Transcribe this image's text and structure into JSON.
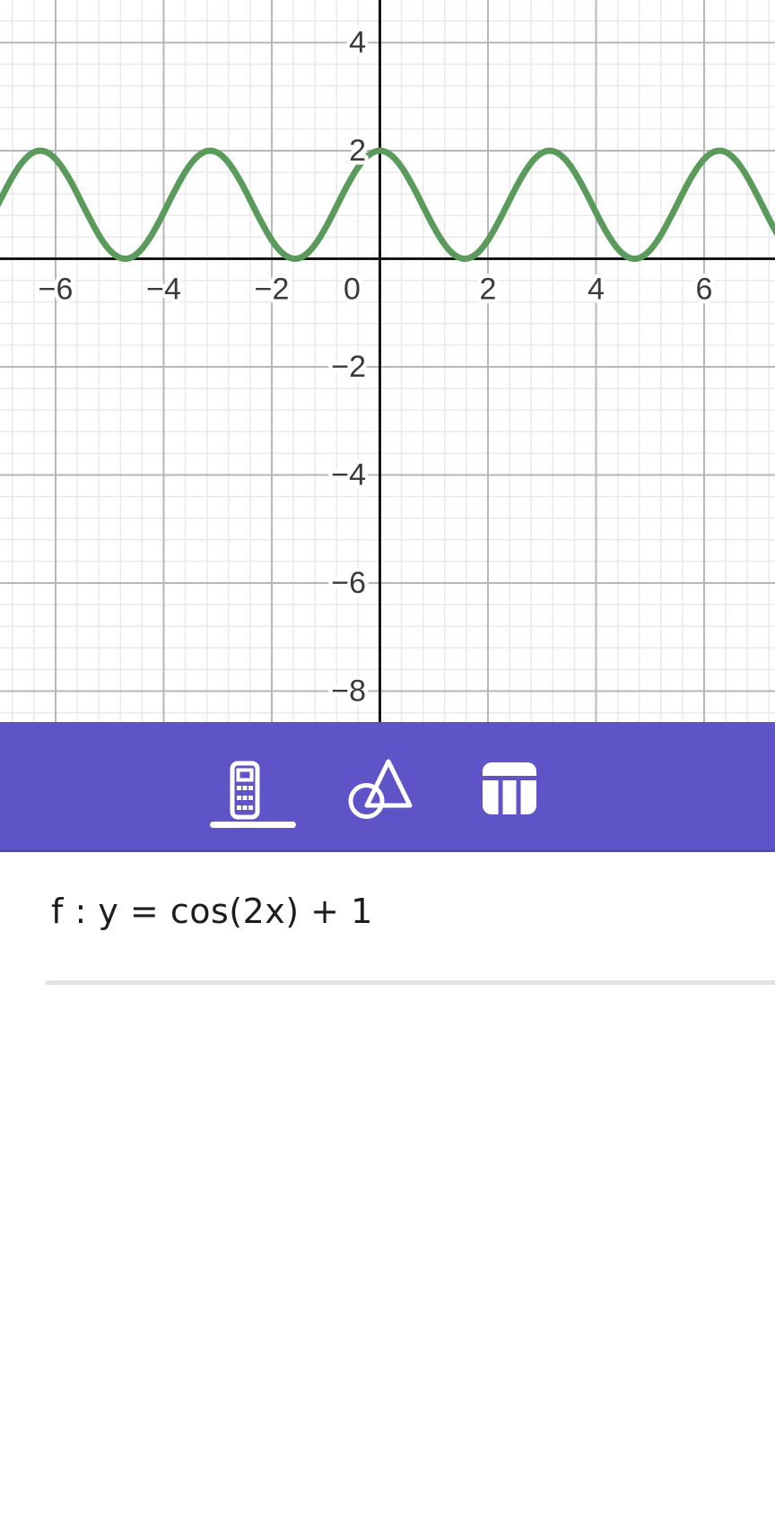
{
  "app": {
    "name": "graphing-calculator",
    "accent_color": "#5f53c8"
  },
  "chart_data": {
    "type": "line",
    "title": "",
    "xlabel": "",
    "ylabel": "",
    "x_range": [
      -7.03,
      7.31
    ],
    "y_range": [
      -8.57,
      4.79
    ],
    "grid": {
      "on": true,
      "major_step": 2,
      "minor_step": 0.4
    },
    "axis_color": "#151515",
    "grid_major_color": "#b7b7b7",
    "grid_minor_color": "#e9e9e9",
    "series": [
      {
        "name": "f",
        "expression": "cos(2x) + 1",
        "color": "#5a9b5c",
        "params": {
          "type": "cos",
          "amplitude": 1,
          "angular_coeff": 2,
          "offset": 1
        }
      }
    ],
    "x_ticks": [
      {
        "v": -6,
        "label": "−6"
      },
      {
        "v": -4,
        "label": "−4"
      },
      {
        "v": -2,
        "label": "−2"
      },
      {
        "v": 0,
        "label": "0"
      },
      {
        "v": 2,
        "label": "2"
      },
      {
        "v": 4,
        "label": "4"
      },
      {
        "v": 6,
        "label": "6"
      }
    ],
    "y_ticks": [
      {
        "v": 4,
        "label": "4"
      },
      {
        "v": 2,
        "label": "2"
      },
      {
        "v": -2,
        "label": "−2"
      },
      {
        "v": -4,
        "label": "−4"
      },
      {
        "v": -6,
        "label": "−6"
      },
      {
        "v": -8,
        "label": "−8"
      }
    ]
  },
  "toolbar": {
    "background": "#5f53c8",
    "tabs": [
      {
        "id": "calculator",
        "icon": "calculator-icon",
        "active": true
      },
      {
        "id": "geometry",
        "icon": "geometry-icon",
        "active": false
      },
      {
        "id": "table",
        "icon": "table-icon",
        "active": false
      }
    ],
    "edge_button_icon": "chevron-left-icon"
  },
  "algebra": {
    "expression": "f : y = cos(2x) + 1"
  }
}
